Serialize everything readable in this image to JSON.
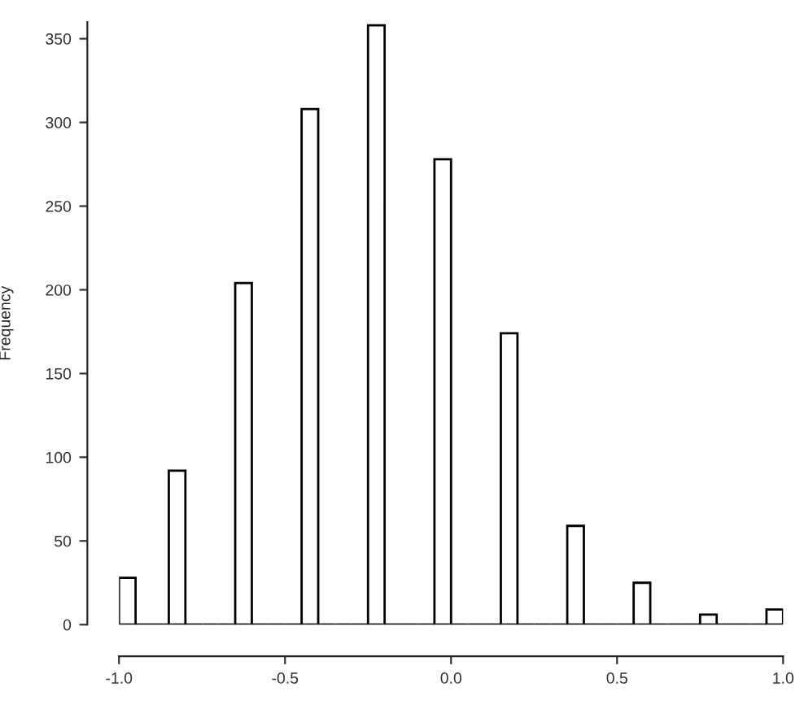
{
  "chart_data": {
    "type": "histogram",
    "ylabel": "Frequency",
    "bins": [
      -1.0,
      -0.95,
      -0.9,
      -0.85,
      -0.8,
      -0.75,
      -0.7,
      -0.65,
      -0.6,
      -0.55,
      -0.5,
      -0.45,
      -0.4,
      -0.35,
      -0.3,
      -0.25,
      -0.2,
      -0.15,
      -0.1,
      -0.05,
      0.0,
      0.05,
      0.1,
      0.15,
      0.2,
      0.25,
      0.3,
      0.35,
      0.4,
      0.45,
      0.5,
      0.55,
      0.6,
      0.65,
      0.7,
      0.75,
      0.8,
      0.85,
      0.9,
      0.95,
      1.0
    ],
    "values": [
      28,
      0,
      0,
      92,
      0,
      0,
      0,
      204,
      0,
      0,
      0,
      308,
      0,
      0,
      0,
      358,
      0,
      0,
      0,
      278,
      0,
      0,
      0,
      174,
      0,
      0,
      0,
      59,
      0,
      0,
      0,
      25,
      0,
      0,
      0,
      6,
      0,
      0,
      0,
      9
    ],
    "color": "#000000",
    "xlim": [
      -1.0,
      1.0
    ],
    "xticks": [
      {
        "value": -1.0,
        "label": "-1.0"
      },
      {
        "value": -0.5,
        "label": "-0.5"
      },
      {
        "value": 0.0,
        "label": "0.0"
      },
      {
        "value": 0.5,
        "label": "0.5"
      },
      {
        "value": 1.0,
        "label": "1.0"
      }
    ],
    "ylim": [
      0,
      360
    ],
    "yticks": [
      0,
      50,
      100,
      150,
      200,
      250,
      300,
      350
    ],
    "grid": false
  }
}
